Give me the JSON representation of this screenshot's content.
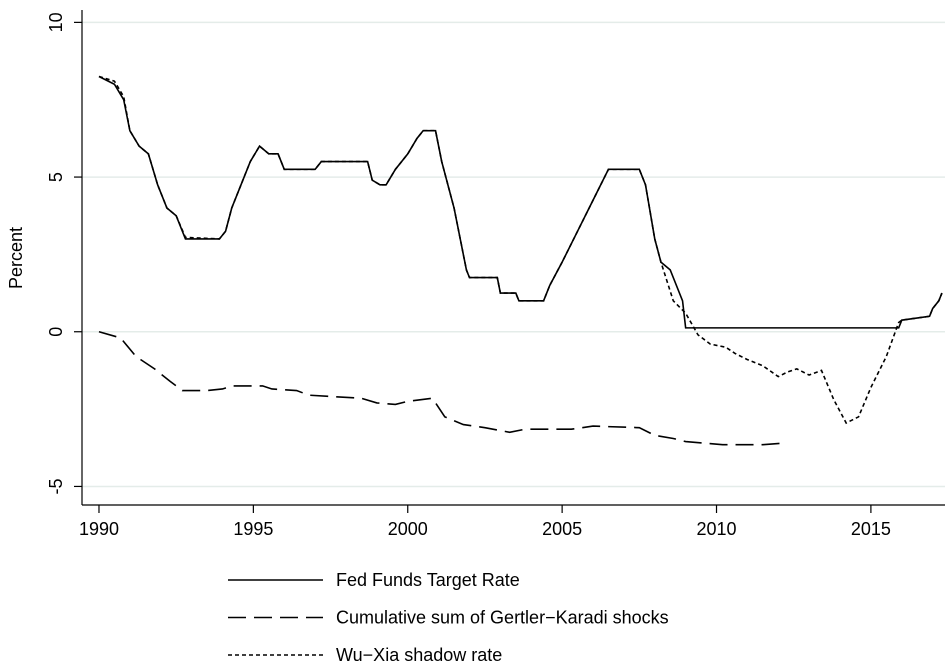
{
  "chart_data": {
    "type": "line",
    "ylabel": "Percent",
    "xlim": [
      1989.45,
      2017.4
    ],
    "xticks": [
      1990,
      1995,
      2000,
      2005,
      2010,
      2015
    ],
    "ylim": [
      -5.6,
      10.4
    ],
    "yticks": [
      -5,
      0,
      5,
      10
    ],
    "grid": true,
    "legend": "bottom",
    "series": [
      {
        "name": "Fed Funds Target Rate",
        "color": "#000000",
        "dash": "solid",
        "x": [
          1990.0,
          1990.5,
          1990.8,
          1991.0,
          1991.3,
          1991.6,
          1991.9,
          1992.2,
          1992.5,
          1992.8,
          1993.9,
          1994.1,
          1994.3,
          1994.6,
          1994.9,
          1995.2,
          1995.5,
          1995.8,
          1996.0,
          1997.0,
          1997.2,
          1998.7,
          1998.85,
          1999.1,
          1999.3,
          1999.6,
          2000.0,
          2000.3,
          2000.5,
          2000.9,
          2001.1,
          2001.5,
          2001.9,
          2002.0,
          2002.9,
          2003.0,
          2003.5,
          2003.6,
          2004.4,
          2004.6,
          2005.0,
          2005.5,
          2006.0,
          2006.5,
          2007.5,
          2007.7,
          2008.0,
          2008.2,
          2008.5,
          2008.9,
          2009.0,
          2015.9,
          2016.0,
          2016.9,
          2017.0,
          2017.2,
          2017.3
        ],
        "values": [
          8.25,
          8.0,
          7.5,
          6.5,
          6.0,
          5.75,
          4.75,
          4.0,
          3.75,
          3.0,
          3.0,
          3.25,
          4.0,
          4.75,
          5.5,
          6.0,
          5.75,
          5.75,
          5.25,
          5.25,
          5.5,
          5.5,
          4.9,
          4.75,
          4.75,
          5.25,
          5.75,
          6.25,
          6.5,
          6.5,
          5.5,
          4.0,
          2.0,
          1.75,
          1.75,
          1.25,
          1.25,
          1.0,
          1.0,
          1.5,
          2.25,
          3.25,
          4.25,
          5.25,
          5.25,
          4.75,
          3.0,
          2.25,
          2.0,
          1.0,
          0.125,
          0.125,
          0.375,
          0.5,
          0.75,
          1.0,
          1.25
        ]
      },
      {
        "name": "Cumulative sum of Gertler−Karadi shocks",
        "color": "#000000",
        "dash": "long",
        "x": [
          1990.0,
          1990.7,
          1991.2,
          1991.8,
          1992.3,
          1992.7,
          1993.5,
          1994.0,
          1994.3,
          1995.3,
          1995.6,
          1996.4,
          1996.8,
          1998.5,
          1999.0,
          1999.6,
          2000.0,
          2000.8,
          2001.2,
          2001.8,
          2002.5,
          2003.3,
          2003.8,
          2005.3,
          2006.0,
          2007.5,
          2008.0,
          2008.6,
          2009.0,
          2010.2,
          2011.5,
          2012.2
        ],
        "values": [
          0,
          -0.2,
          -0.8,
          -1.2,
          -1.6,
          -1.9,
          -1.9,
          -1.85,
          -1.75,
          -1.75,
          -1.85,
          -1.9,
          -2.05,
          -2.15,
          -2.3,
          -2.35,
          -2.25,
          -2.15,
          -2.75,
          -3.0,
          -3.1,
          -3.25,
          -3.15,
          -3.15,
          -3.05,
          -3.1,
          -3.35,
          -3.45,
          -3.55,
          -3.65,
          -3.65,
          -3.6
        ]
      },
      {
        "name": "Wu−Xia shadow rate",
        "color": "#000000",
        "dash": "dot",
        "x": [
          1990.0,
          1990.5,
          1990.8,
          1991.0,
          1991.3,
          1991.6,
          1991.9,
          1992.2,
          1992.5,
          1992.8,
          1993.9,
          1994.1,
          1994.3,
          1994.6,
          1994.9,
          1995.2,
          1995.5,
          1995.8,
          1996.0,
          1997.0,
          1997.2,
          1998.7,
          1998.85,
          1999.1,
          1999.3,
          1999.6,
          2000.0,
          2000.3,
          2000.5,
          2000.9,
          2001.1,
          2001.5,
          2001.9,
          2002.0,
          2002.9,
          2003.0,
          2003.5,
          2003.6,
          2004.4,
          2004.6,
          2005.0,
          2005.5,
          2006.0,
          2006.5,
          2007.5,
          2007.7,
          2008.0,
          2008.2,
          2008.6,
          2009.0,
          2009.4,
          2009.8,
          2010.3,
          2010.6,
          2011.0,
          2011.5,
          2012.0,
          2012.3,
          2012.6,
          2013.0,
          2013.4,
          2013.8,
          2014.2,
          2014.6,
          2015.0,
          2015.5,
          2015.9,
          2016.0,
          2016.9,
          2017.0,
          2017.2,
          2017.3
        ],
        "values": [
          8.25,
          8.1,
          7.6,
          6.5,
          6.0,
          5.75,
          4.75,
          4.0,
          3.75,
          3.05,
          3.0,
          3.25,
          4.0,
          4.75,
          5.5,
          6.0,
          5.75,
          5.75,
          5.25,
          5.25,
          5.5,
          5.5,
          4.9,
          4.75,
          4.75,
          5.25,
          5.75,
          6.25,
          6.5,
          6.5,
          5.5,
          4.0,
          2.0,
          1.75,
          1.75,
          1.25,
          1.25,
          1.0,
          1.0,
          1.5,
          2.25,
          3.25,
          4.25,
          5.25,
          5.25,
          4.75,
          3.0,
          2.25,
          1.0,
          0.6,
          -0.1,
          -0.4,
          -0.5,
          -0.7,
          -0.9,
          -1.1,
          -1.45,
          -1.3,
          -1.2,
          -1.4,
          -1.25,
          -2.2,
          -2.95,
          -2.75,
          -1.8,
          -0.8,
          0.3,
          0.375,
          0.5,
          0.75,
          1.0,
          1.25
        ]
      }
    ]
  }
}
